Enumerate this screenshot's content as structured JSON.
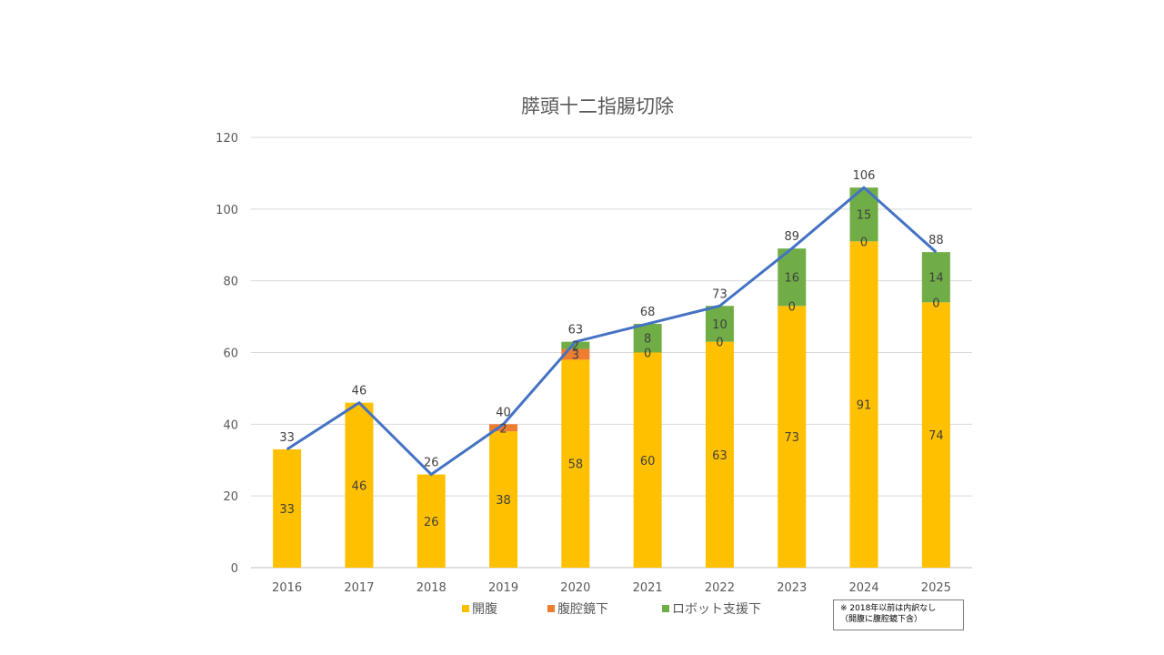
{
  "chart_data": {
    "type": "bar",
    "stacked": true,
    "title": "膵頭十二指腸切除",
    "categories": [
      "2016",
      "2017",
      "2018",
      "2019",
      "2020",
      "2021",
      "2022",
      "2023",
      "2024",
      "2025"
    ],
    "series": [
      {
        "name": "開腹",
        "color": "#FFC000",
        "values": [
          33,
          46,
          26,
          38,
          58,
          60,
          63,
          73,
          91,
          74
        ]
      },
      {
        "name": "腹腔鏡下",
        "color": "#ED7D31",
        "values": [
          null,
          null,
          null,
          2,
          3,
          0,
          0,
          0,
          0,
          0
        ]
      },
      {
        "name": "ロボット支援下",
        "color": "#70AD47",
        "values": [
          null,
          null,
          null,
          null,
          2,
          8,
          10,
          16,
          15,
          14
        ]
      }
    ],
    "totals": {
      "type": "line",
      "color": "#4472C4",
      "values": [
        33,
        46,
        26,
        40,
        63,
        68,
        73,
        89,
        106,
        88
      ]
    },
    "ylim": [
      0,
      120
    ],
    "yticks": [
      "0",
      "20",
      "40",
      "60",
      "80",
      "100",
      "120"
    ],
    "grid": true,
    "legend_position": "bottom"
  },
  "note": {
    "line1": "※ 2018年以前は内訳なし",
    "line2": "（開腹に腹腔鏡下含）"
  }
}
